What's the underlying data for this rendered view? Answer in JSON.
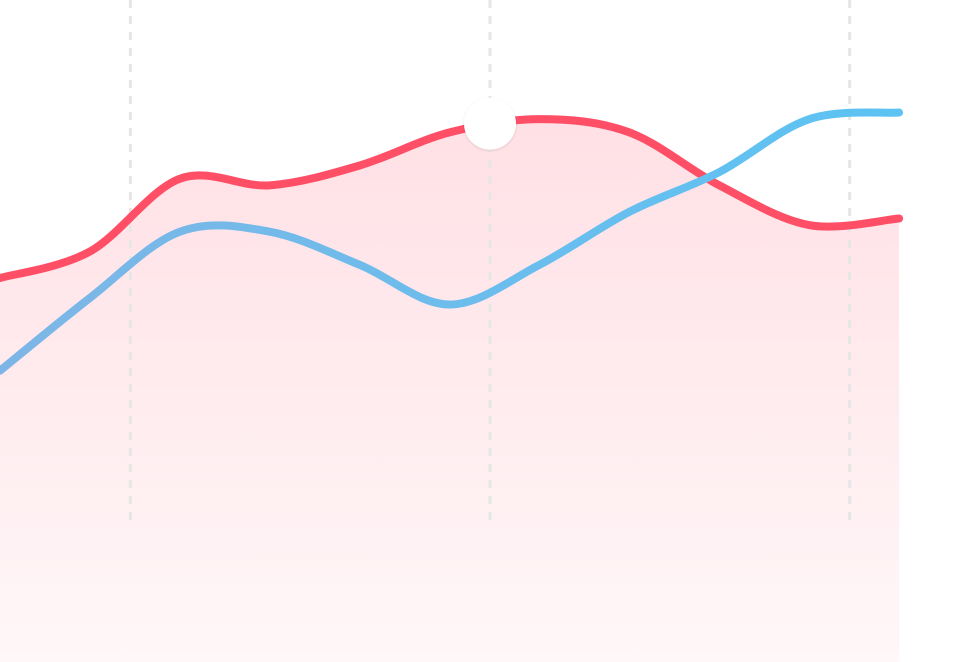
{
  "chart_data": {
    "type": "line",
    "title": "",
    "xlabel": "",
    "ylabel": "",
    "x": [
      0,
      1,
      2,
      3,
      4,
      5,
      6,
      7,
      8,
      9,
      10
    ],
    "xlim": [
      0,
      10.9
    ],
    "ylim": [
      0,
      100
    ],
    "grid": {
      "vertical": true,
      "horizontal": false
    },
    "vertical_gridlines_at": [
      1.45,
      5.45,
      9.45
    ],
    "series": [
      {
        "values": [
          58,
          62,
          73,
          72,
          75,
          80,
          82,
          80,
          72,
          66,
          67
        ],
        "color": "#ff4f66",
        "fill": "gradient",
        "fill_color": "#ffe3e7"
      },
      {
        "values": [
          44,
          55,
          65,
          65,
          60,
          54,
          60,
          68,
          74,
          82,
          83
        ],
        "color": "#7db6e6",
        "color_end": "#5cc3f2",
        "fill": "none"
      }
    ],
    "highlight_marker": {
      "series": 0,
      "x": 5.45,
      "color": "#ffffff"
    }
  }
}
